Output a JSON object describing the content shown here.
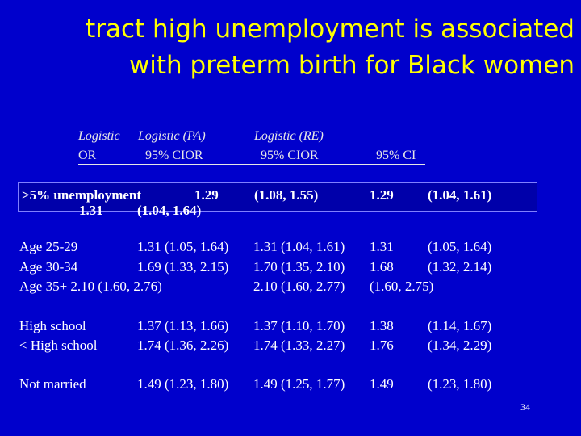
{
  "title": {
    "line1": "tract high unemployment is associated",
    "line2": "with preterm birth for Black women"
  },
  "header": {
    "row1": [
      "Logistic",
      "Logistic (PA)",
      "Logistic (RE)"
    ],
    "row2": [
      "OR",
      "95% CIOR",
      "95% CIOR",
      "95% CI"
    ]
  },
  "highlight": {
    "label": ">5% unemployment",
    "v1": "1.29",
    "v2": "(1.08, 1.55)",
    "v3": "1.29",
    "v4": "(1.04, 1.61)",
    "v5": "1.31",
    "v6": "(1.04, 1.64)"
  },
  "rows": [
    {
      "label": "Age 25-29",
      "a": "1.31 (1.05, 1.64)",
      "b": "1.31 (1.04, 1.61)",
      "c": "1.31",
      "d": "(1.05, 1.64)"
    },
    {
      "label": "Age 30-34",
      "a": "1.69 (1.33, 2.15)",
      "b": "1.70 (1.35, 2.10)",
      "c": "1.68",
      "d": "(1.32, 2.14)"
    },
    {
      "label": "Age 35+ 2.10 (1.60, 2.76)",
      "b": "2.10 (1.60, 2.77)",
      "c": "2.10",
      "d": "(1.60, 2.75)"
    },
    {
      "label": "High school",
      "a": "1.37 (1.13, 1.66)",
      "b": "1.37 (1.10, 1.70)",
      "c": "1.38",
      "d": "(1.14, 1.67)"
    },
    {
      "label": "< High school",
      "a": "1.74 (1.36, 2.26)",
      "b": "1.74 (1.33, 2.27)",
      "c": "1.76",
      "d": "(1.34, 2.29)"
    },
    {
      "label": "Not married",
      "a": "1.49 (1.23, 1.80)",
      "b": "1.49 (1.25, 1.77)",
      "c": "1.49",
      "d": "(1.23, 1.80)"
    }
  ],
  "page_number": "34",
  "colors": {
    "background": "#0000cc",
    "title": "#ffff00",
    "text": "#ffffff"
  }
}
